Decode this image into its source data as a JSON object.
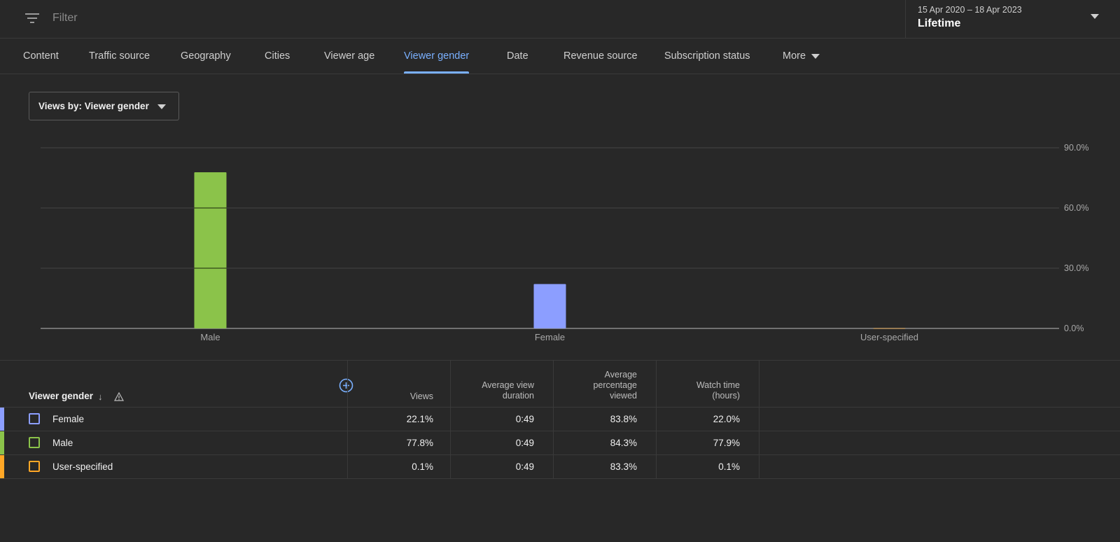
{
  "filter": {
    "placeholder": "Filter"
  },
  "date": {
    "range": "15 Apr 2020 – 18 Apr 2023",
    "preset": "Lifetime"
  },
  "tabs": [
    {
      "label": "Content"
    },
    {
      "label": "Traffic source"
    },
    {
      "label": "Geography"
    },
    {
      "label": "Cities"
    },
    {
      "label": "Viewer age"
    },
    {
      "label": "Viewer gender",
      "active": true
    },
    {
      "label": "Date"
    },
    {
      "label": "Revenue source"
    },
    {
      "label": "Subscription status"
    },
    {
      "label": "More"
    }
  ],
  "dropdown": {
    "label": "Views by: Viewer gender"
  },
  "chart_data": {
    "type": "bar",
    "categories": [
      "Male",
      "Female",
      "User-specified"
    ],
    "values": [
      77.8,
      22.1,
      0.1
    ],
    "colors": [
      "#8bc34a",
      "#8c9eff",
      "#ffa726"
    ],
    "ylim": [
      0,
      90
    ],
    "yticks": [
      "90.0%",
      "60.0%",
      "30.0%",
      "0.0%"
    ],
    "grid": true
  },
  "table": {
    "first_header": "Viewer gender",
    "headers": [
      {
        "label": "Views"
      },
      {
        "label": "Average view duration"
      },
      {
        "label": "Average percentage viewed"
      },
      {
        "label": "Watch time (hours)"
      }
    ],
    "rows": [
      {
        "label": "Female",
        "color": "#8c9eff",
        "values": [
          "22.1%",
          "0:49",
          "83.8%",
          "22.0%"
        ]
      },
      {
        "label": "Male",
        "color": "#8bc34a",
        "values": [
          "77.8%",
          "0:49",
          "84.3%",
          "77.9%"
        ]
      },
      {
        "label": "User-specified",
        "color": "#ffa726",
        "values": [
          "0.1%",
          "0:49",
          "83.3%",
          "0.1%"
        ]
      }
    ]
  }
}
